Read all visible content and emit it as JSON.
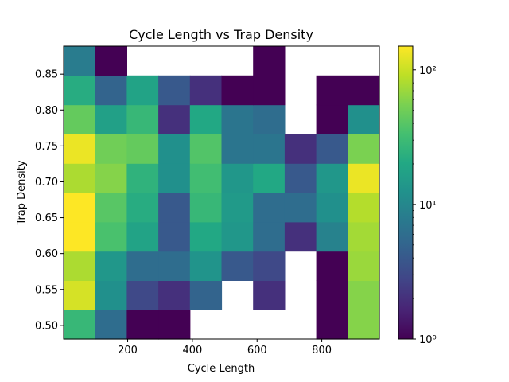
{
  "chart_data": {
    "type": "heatmap",
    "title": "Cycle Length vs Trap Density",
    "xlabel": "Cycle Length",
    "ylabel": "Trap Density",
    "xlim": [
      2,
      978
    ],
    "ylim": [
      0.481,
      0.889
    ],
    "x_bin_edges": [
      2,
      99.6,
      197.2,
      294.8,
      392.4,
      490,
      587.6,
      685.2,
      782.8,
      880.4,
      978
    ],
    "y_bin_edges": [
      0.481,
      0.5218,
      0.5626,
      0.6034,
      0.6442,
      0.685,
      0.7258,
      0.7666,
      0.8074,
      0.8482,
      0.889
    ],
    "x_ticks": [
      200,
      400,
      600,
      800
    ],
    "x_tick_labels": [
      "200",
      "400",
      "600",
      "800"
    ],
    "y_ticks": [
      0.5,
      0.55,
      0.6,
      0.65,
      0.7,
      0.75,
      0.8,
      0.85
    ],
    "y_tick_labels": [
      "0.50",
      "0.55",
      "0.60",
      "0.65",
      "0.70",
      "0.75",
      "0.80",
      "0.85"
    ],
    "counts_rows_bottom_to_top": [
      [
        28,
        6,
        1,
        1,
        null,
        null,
        null,
        null,
        1,
        60
      ],
      [
        110,
        12,
        3,
        2,
        5,
        null,
        2,
        null,
        1,
        60
      ],
      [
        80,
        14,
        6,
        6,
        13,
        4,
        3,
        null,
        1,
        70
      ],
      [
        150,
        35,
        18,
        4,
        20,
        14,
        6,
        2,
        9,
        75
      ],
      [
        150,
        40,
        22,
        4,
        28,
        15,
        6,
        6,
        12,
        85
      ],
      [
        80,
        60,
        25,
        12,
        32,
        14,
        20,
        4,
        14,
        130
      ],
      [
        130,
        50,
        45,
        12,
        38,
        7,
        7,
        2,
        4,
        55
      ],
      [
        45,
        17,
        28,
        2,
        20,
        7,
        6,
        null,
        1,
        12
      ],
      [
        22,
        5,
        18,
        4,
        2,
        1,
        1,
        null,
        1,
        1
      ],
      [
        8,
        1,
        null,
        null,
        null,
        null,
        1,
        null,
        null,
        null
      ]
    ],
    "colormap": "viridis",
    "color_scale": "log",
    "color_range": [
      1,
      150
    ],
    "colorbar_ticks": [
      1,
      10,
      100
    ],
    "colorbar_tick_labels": [
      "10⁰",
      "10¹",
      "10²"
    ],
    "grid": false,
    "legend": "colorbar-right"
  }
}
